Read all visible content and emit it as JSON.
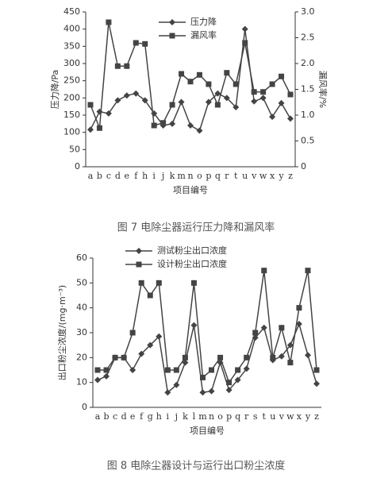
{
  "chart_data": [
    {
      "type": "line",
      "caption": "图 7 电除尘器运行压力降和漏风率",
      "xlabel": "项目编号",
      "ylabel": "压力降/Pa",
      "y2label": "漏风率/%",
      "categories": [
        "a",
        "b",
        "c",
        "d",
        "e",
        "f",
        "h",
        "i",
        "j",
        "k",
        "m",
        "n",
        "o",
        "p",
        "q",
        "r",
        "t",
        "u",
        "v",
        "w",
        "x",
        "y",
        "z"
      ],
      "ylim": [
        0,
        450
      ],
      "yticks": [
        0,
        50,
        100,
        150,
        200,
        250,
        300,
        350,
        400,
        450
      ],
      "y2lim": [
        0,
        3
      ],
      "y2ticks": [
        0,
        {
          "value": 0.5,
          "label": "0.5"
        },
        {
          "value": 1,
          "label": "1.0"
        },
        {
          "value": 1.5,
          "label": "1.5"
        },
        {
          "value": 2,
          "label": "2.0"
        },
        {
          "value": 2.5,
          "label": "2.5"
        },
        {
          "value": 3,
          "label": "3.0"
        }
      ],
      "series": [
        {
          "name": "压力降",
          "color": "#444444",
          "marker": "diamond",
          "values": [
            108,
            160,
            155,
            193,
            207,
            213,
            193,
            155,
            120,
            125,
            188,
            120,
            105,
            188,
            213,
            200,
            173,
            400,
            190,
            200,
            145,
            185,
            140
          ]
        },
        {
          "name": "漏风率",
          "color": "#444444",
          "marker": "square",
          "axis": "y2",
          "values": [
            1.2,
            0.75,
            2.8,
            1.95,
            1.95,
            2.4,
            2.38,
            0.8,
            0.85,
            1.2,
            1.8,
            1.65,
            1.78,
            1.6,
            1.2,
            1.82,
            1.6,
            2.4,
            1.45,
            1.45,
            1.6,
            1.75,
            1.4
          ]
        }
      ]
    },
    {
      "type": "line",
      "caption": "图 8 电除尘器设计与运行出口粉尘浓度",
      "xlabel": "项目编号",
      "ylabel": "出口粉尘浓度/(mg·m⁻³)",
      "categories": [
        "a",
        "b",
        "c",
        "d",
        "e",
        "f",
        "g",
        "h",
        "i",
        "j",
        "k",
        "l",
        "m",
        "n",
        "o",
        "p",
        "q",
        "r",
        "s",
        "t",
        "u",
        "v",
        "w",
        "x",
        "y",
        "z"
      ],
      "ylim": [
        0,
        60
      ],
      "yticks": [
        0,
        10,
        20,
        30,
        40,
        50,
        60
      ],
      "series": [
        {
          "name": "测试粉尘出口浓度",
          "color": "#444444",
          "marker": "diamond",
          "values": [
            11,
            12.5,
            20,
            20,
            15,
            21.5,
            25,
            28.5,
            6,
            9,
            18,
            33,
            6,
            6.5,
            18,
            7,
            11,
            15.5,
            28,
            32,
            19,
            20.5,
            25,
            33.5,
            21,
            9.5
          ]
        },
        {
          "name": "设计粉尘出口浓度",
          "color": "#444444",
          "marker": "square",
          "values": [
            15,
            15,
            20,
            20,
            30,
            50,
            45,
            50,
            15,
            15,
            20,
            50,
            12,
            15,
            20,
            10,
            15,
            20,
            30,
            55,
            20,
            32,
            18,
            40,
            55,
            15
          ]
        }
      ]
    }
  ]
}
